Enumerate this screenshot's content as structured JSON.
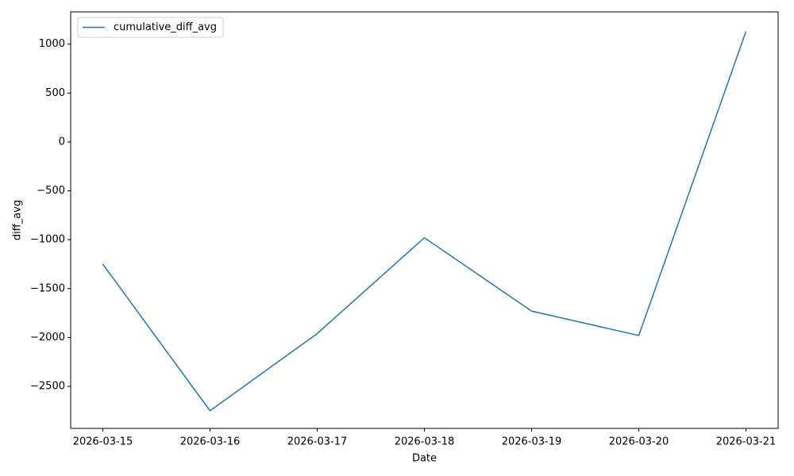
{
  "chart_data": {
    "type": "line",
    "x_label": "Date",
    "y_label": "diff_avg",
    "categories": [
      "2026-03-15",
      "2026-03-16",
      "2026-03-17",
      "2026-03-18",
      "2026-03-19",
      "2026-03-20",
      "2026-03-21"
    ],
    "series": [
      {
        "name": "cumulative_diff_avg",
        "color": "#1f77b4",
        "values": [
          -1250,
          -2750,
          -1960,
          -980,
          -1730,
          -1980,
          1130
        ]
      }
    ],
    "ylim": [
      -2930,
      1330
    ],
    "yticks": [
      {
        "value": -2500,
        "label": "−2500"
      },
      {
        "value": -2000,
        "label": "−2000"
      },
      {
        "value": -1500,
        "label": "−1500"
      },
      {
        "value": -1000,
        "label": "−1000"
      },
      {
        "value": -500,
        "label": "−500"
      },
      0,
      500,
      1000
    ],
    "grid": false,
    "legend": "upper left"
  }
}
